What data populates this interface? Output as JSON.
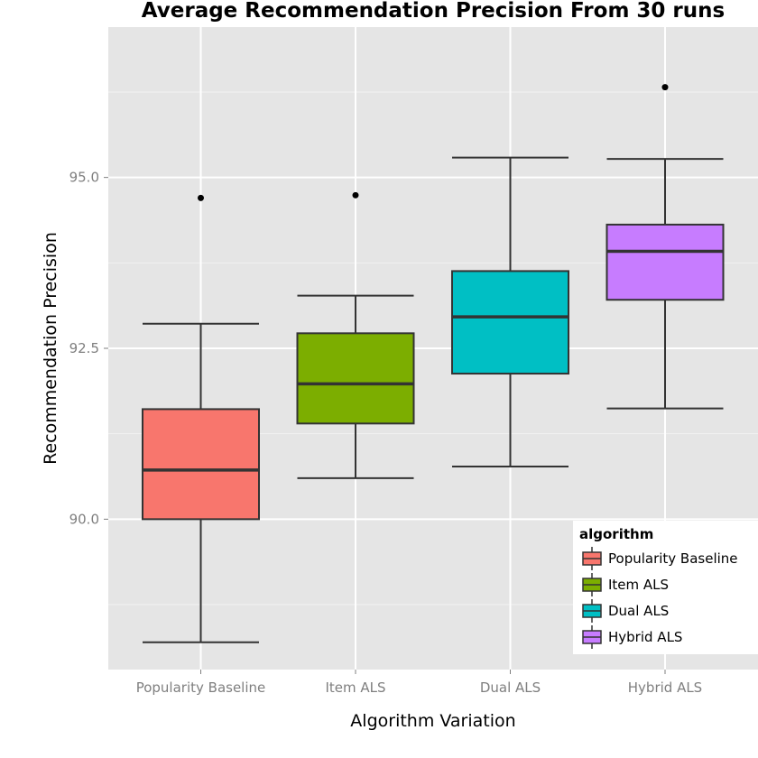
{
  "chart_data": {
    "type": "box",
    "title": "Average Recommendation Precision From 30 runs",
    "xlabel": "Algorithm Variation",
    "ylabel": "Recommendation Precision",
    "ylim": [
      87.8,
      97.2
    ],
    "yticks": [
      90.0,
      92.5,
      95.0
    ],
    "ytick_labels": [
      "90.0",
      "92.5",
      "95.0"
    ],
    "grid": true,
    "legend": {
      "title": "algorithm",
      "position": "bottom-right"
    },
    "categories": [
      "Popularity Baseline",
      "Item ALS",
      "Dual ALS",
      "Hybrid ALS"
    ],
    "series": [
      {
        "name": "Popularity Baseline",
        "color": "#F8766D",
        "whisker_low": 88.2,
        "q1": 90.0,
        "median": 90.72,
        "q3": 91.61,
        "whisker_high": 92.86,
        "outliers": [
          94.7
        ]
      },
      {
        "name": "Item ALS",
        "color": "#7CAE00",
        "whisker_low": 90.6,
        "q1": 91.4,
        "median": 91.98,
        "q3": 92.72,
        "whisker_high": 93.27,
        "outliers": [
          94.74
        ]
      },
      {
        "name": "Dual ALS",
        "color": "#00BFC4",
        "whisker_low": 90.77,
        "q1": 92.13,
        "median": 92.96,
        "q3": 93.63,
        "whisker_high": 95.29,
        "outliers": []
      },
      {
        "name": "Hybrid ALS",
        "color": "#C77CFF",
        "whisker_low": 91.62,
        "q1": 93.21,
        "median": 93.92,
        "q3": 94.31,
        "whisker_high": 95.27,
        "outliers": [
          96.32
        ]
      }
    ]
  }
}
